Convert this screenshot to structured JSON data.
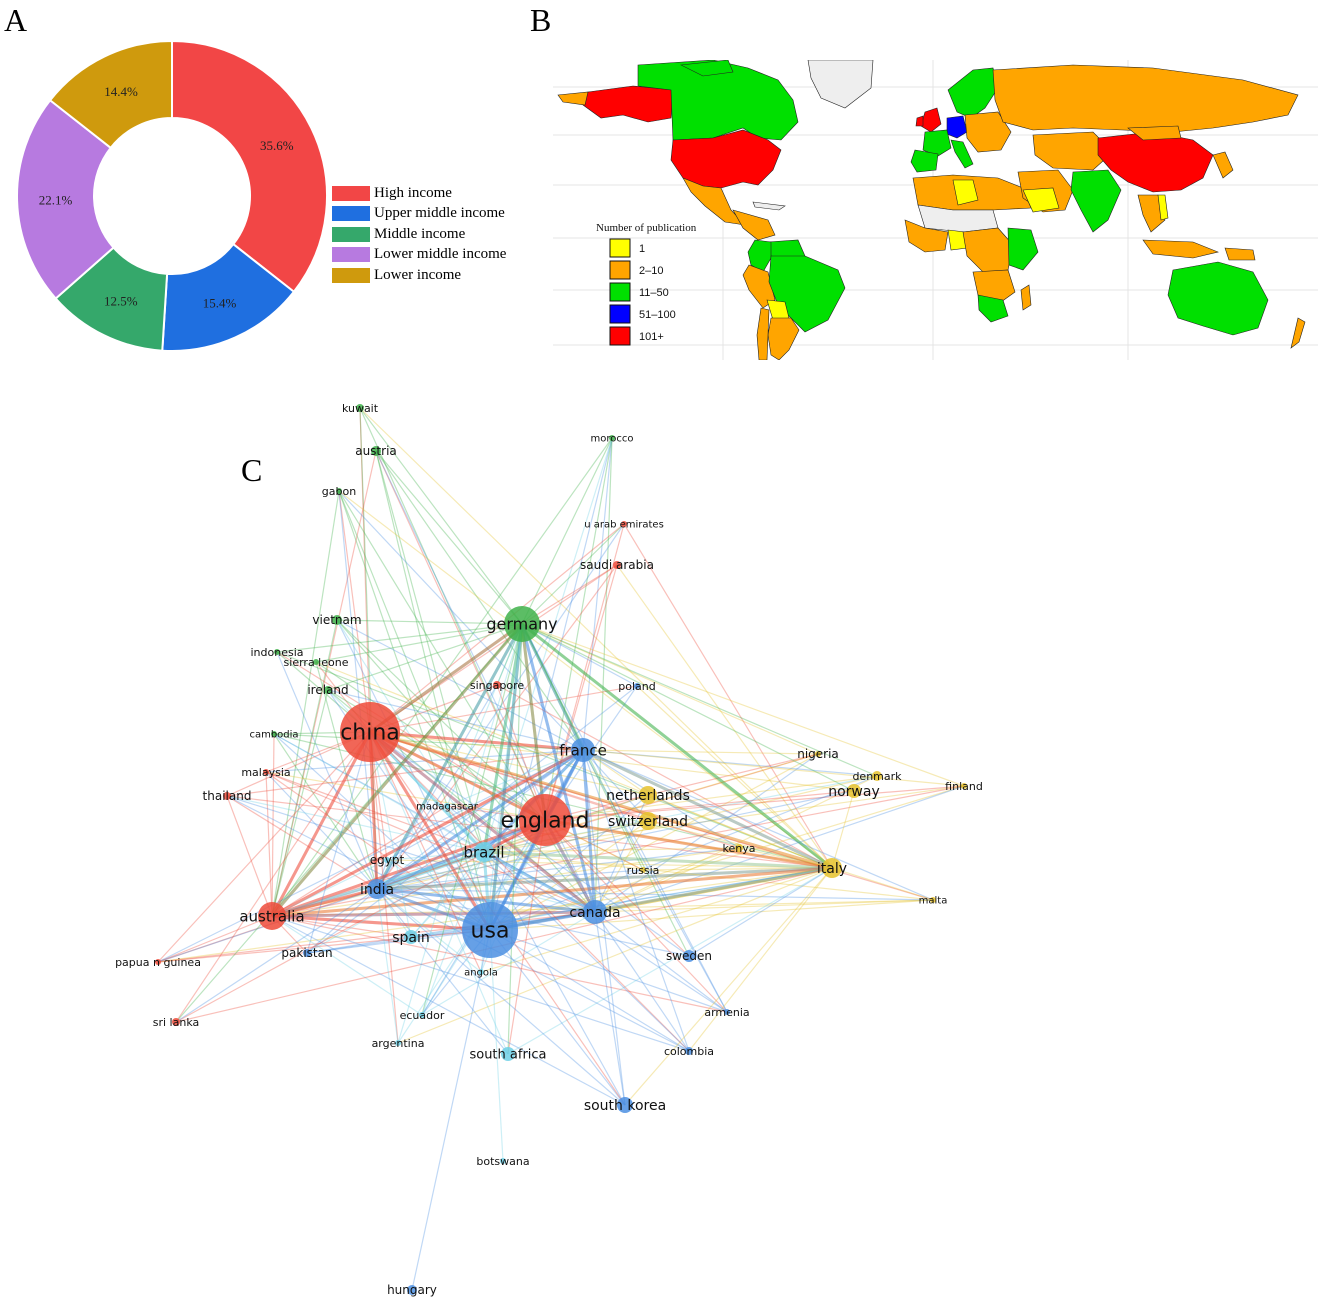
{
  "panels": {
    "a": "A",
    "b": "B",
    "c": "C"
  },
  "chart_data": [
    {
      "type": "pie",
      "donut": true,
      "categories": [
        "High income",
        "Upper middle income",
        "Middle income",
        "Lower middle income",
        "Lower income"
      ],
      "values": [
        35.6,
        15.4,
        12.5,
        22.1,
        14.4
      ],
      "labels": [
        "35.6%",
        "15.4%",
        "12.5%",
        "22.1%",
        "14.4%"
      ],
      "colors": [
        "#f24646",
        "#1f6fe0",
        "#35a86b",
        "#b77ae0",
        "#cf9a0d"
      ],
      "legend_position": "right"
    },
    {
      "type": "map",
      "legend_title": "Number of publication",
      "legend": [
        {
          "label": "1",
          "color": "#ffff00"
        },
        {
          "label": "2–10",
          "color": "#ffa500"
        },
        {
          "label": "11–50",
          "color": "#00e000"
        },
        {
          "label": "51–100",
          "color": "#0000ff"
        },
        {
          "label": "101+",
          "color": "#ff0000"
        }
      ]
    },
    {
      "type": "network",
      "cluster_colors": {
        "red": "#ef4b3a",
        "green": "#3fb24a",
        "blue": "#4b8fe2",
        "yellow": "#e6c22d",
        "cyan": "#6fd0e6"
      },
      "nodes": [
        {
          "label": "kuwait",
          "cluster": "green"
        },
        {
          "label": "morocco",
          "cluster": "green"
        },
        {
          "label": "austria",
          "cluster": "green"
        },
        {
          "label": "u arab emirates",
          "cluster": "red"
        },
        {
          "label": "gabon",
          "cluster": "green"
        },
        {
          "label": "saudi arabia",
          "cluster": "red"
        },
        {
          "label": "vietnam",
          "cluster": "green"
        },
        {
          "label": "germany",
          "cluster": "green"
        },
        {
          "label": "indonesia",
          "cluster": "green"
        },
        {
          "label": "sierra leone",
          "cluster": "green"
        },
        {
          "label": "singapore",
          "cluster": "red"
        },
        {
          "label": "poland",
          "cluster": "blue"
        },
        {
          "label": "ireland",
          "cluster": "green"
        },
        {
          "label": "china",
          "cluster": "red"
        },
        {
          "label": "cambodia",
          "cluster": "green"
        },
        {
          "label": "france",
          "cluster": "blue"
        },
        {
          "label": "nigeria",
          "cluster": "yellow"
        },
        {
          "label": "denmark",
          "cluster": "yellow"
        },
        {
          "label": "malaysia",
          "cluster": "red"
        },
        {
          "label": "finland",
          "cluster": "yellow"
        },
        {
          "label": "thailand",
          "cluster": "red"
        },
        {
          "label": "netherlands",
          "cluster": "yellow"
        },
        {
          "label": "norway",
          "cluster": "yellow"
        },
        {
          "label": "madagascar",
          "cluster": "cyan"
        },
        {
          "label": "england",
          "cluster": "red"
        },
        {
          "label": "switzerland",
          "cluster": "yellow"
        },
        {
          "label": "kenya",
          "cluster": "yellow"
        },
        {
          "label": "egypt",
          "cluster": "cyan"
        },
        {
          "label": "brazil",
          "cluster": "cyan"
        },
        {
          "label": "russia",
          "cluster": "yellow"
        },
        {
          "label": "italy",
          "cluster": "yellow"
        },
        {
          "label": "india",
          "cluster": "blue"
        },
        {
          "label": "malta",
          "cluster": "yellow"
        },
        {
          "label": "australia",
          "cluster": "red"
        },
        {
          "label": "canada",
          "cluster": "blue"
        },
        {
          "label": "usa",
          "cluster": "blue"
        },
        {
          "label": "spain",
          "cluster": "cyan"
        },
        {
          "label": "pakistan",
          "cluster": "blue"
        },
        {
          "label": "sweden",
          "cluster": "blue"
        },
        {
          "label": "papua n guinea",
          "cluster": "red"
        },
        {
          "label": "angola",
          "cluster": "cyan"
        },
        {
          "label": "ecuador",
          "cluster": "cyan"
        },
        {
          "label": "armenia",
          "cluster": "blue"
        },
        {
          "label": "sri lanka",
          "cluster": "red"
        },
        {
          "label": "argentina",
          "cluster": "cyan"
        },
        {
          "label": "south africa",
          "cluster": "cyan"
        },
        {
          "label": "colombia",
          "cluster": "blue"
        },
        {
          "label": "south korea",
          "cluster": "blue"
        },
        {
          "label": "botswana",
          "cluster": "cyan"
        },
        {
          "label": "hungary",
          "cluster": "blue"
        }
      ]
    }
  ]
}
